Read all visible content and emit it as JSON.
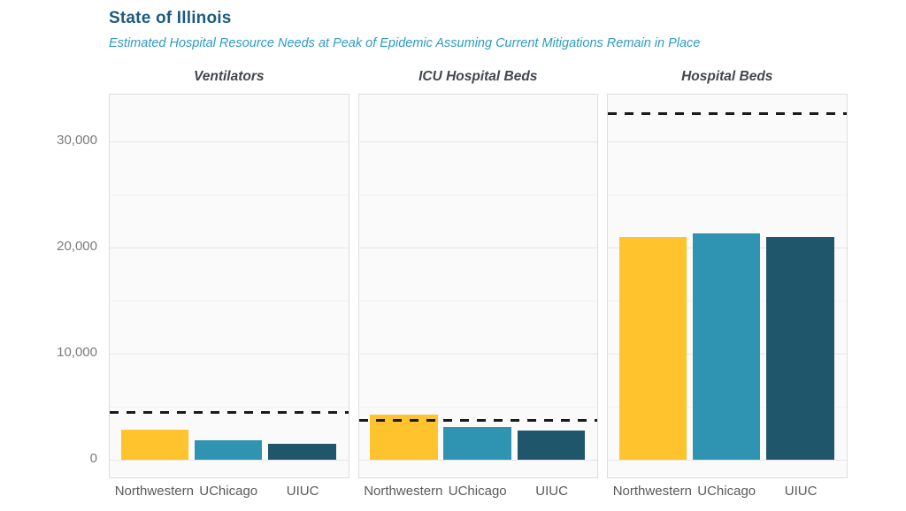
{
  "header": {
    "title": "State of Illinois",
    "subtitle": "Estimated Hospital Resource Needs at Peak of Epidemic Assuming Current Mitigations Remain in Place"
  },
  "colors": {
    "title": "#1D5B7F",
    "subtitle": "#2D9BC1",
    "facet_title": "#43474C",
    "dashed_line": "#1A1A1A",
    "panel_bg": "#FAFAFA",
    "panel_border": "#DEDEDE",
    "grid_major": "#E6E6E6",
    "grid_minor": "#F2F2F2",
    "y_axis_label": "#7A7A7A",
    "x_axis_label": "#5A5A5A"
  },
  "chart_data": {
    "type": "bar",
    "title": "State of Illinois",
    "subtitle": "Estimated Hospital Resource Needs at Peak of Epidemic Assuming Current Mitigations Remain in Place",
    "categories": [
      "Northwestern",
      "UChicago",
      "UIUC"
    ],
    "series_colors": [
      "#FEC32D",
      "#2E94B1",
      "#1F566C"
    ],
    "facets": [
      {
        "title": "Ventilators",
        "dashed_line_value": 4500,
        "values": [
          2900,
          1900,
          1550
        ]
      },
      {
        "title": "ICU Hospital Beds",
        "dashed_line_value": 3750,
        "values": [
          4300,
          3100,
          2800
        ]
      },
      {
        "title": "Hospital Beds",
        "dashed_line_value": 32600,
        "values": [
          21000,
          21350,
          21000
        ]
      }
    ],
    "y_ticks": [
      0,
      10000,
      20000,
      30000
    ],
    "y_tick_labels": [
      "0",
      "10,000",
      "20,000",
      "30,000"
    ],
    "y_minor_ticks": [
      5000,
      15000,
      25000
    ],
    "ylim": [
      -1800,
      34400
    ],
    "grid": true,
    "legend": false
  }
}
